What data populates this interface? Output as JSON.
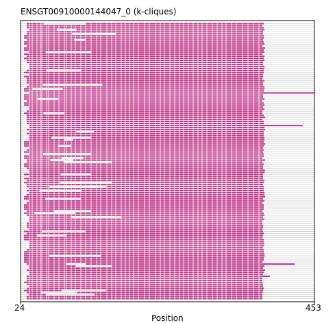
{
  "chart_data": {
    "type": "alignment-coverage",
    "title": "ENSGT00910000144047_0 (k-cliques)",
    "xlabel": "Position",
    "xlim": [
      24,
      453
    ],
    "x_ticks": [
      24,
      453
    ],
    "series_color": "#c0378a",
    "gap_color": "#d9d9d9",
    "grid": false,
    "sequence_count": 136,
    "column_gaps": [
      29,
      37,
      41,
      48,
      53,
      55,
      62,
      65,
      73,
      80,
      88,
      91,
      98,
      104,
      112,
      119,
      127,
      135,
      141,
      150,
      157,
      163,
      171,
      177,
      183,
      189,
      196,
      205,
      212,
      221,
      228,
      234,
      242,
      249,
      256,
      262,
      269,
      276,
      283,
      289,
      296,
      304,
      311,
      318,
      324,
      332,
      339,
      348,
      356,
      364,
      372
    ],
    "coverage_end_typical": 379,
    "long_sequences": [
      {
        "row_fraction": 0.25,
        "end": 453
      },
      {
        "row_fraction": 0.37,
        "end": 436
      },
      {
        "row_fraction": 0.87,
        "end": 424
      },
      {
        "row_fraction": 0.91,
        "end": 388
      }
    ]
  }
}
